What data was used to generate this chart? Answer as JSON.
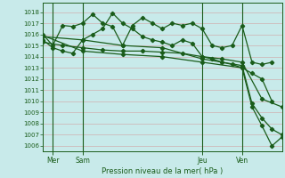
{
  "bg_color": "#c8eaea",
  "grid_color": "#d0b0b0",
  "line_color": "#1a5c1a",
  "xlabel_text": "Pression niveau de la mer( hPa )",
  "ylim": [
    1005.5,
    1018.8
  ],
  "yticks": [
    1006,
    1007,
    1008,
    1009,
    1010,
    1011,
    1012,
    1013,
    1014,
    1015,
    1016,
    1017,
    1018
  ],
  "xlim": [
    0,
    24
  ],
  "xtick_positions": [
    1,
    4,
    16,
    20
  ],
  "xtick_labels": [
    "Mer",
    "Sam",
    "Jeu",
    "Ven"
  ],
  "vlines": [
    1,
    4,
    16,
    20
  ],
  "series": [
    {
      "x": [
        0,
        1,
        2,
        3,
        4,
        5,
        6,
        7,
        8,
        9,
        10,
        11,
        12,
        13,
        14,
        15,
        16,
        17,
        18,
        19,
        20,
        21,
        22,
        23
      ],
      "y": [
        1016.0,
        1015.0,
        1016.8,
        1016.7,
        1017.0,
        1017.8,
        1017.0,
        1016.7,
        1015.0,
        1016.8,
        1017.5,
        1017.0,
        1016.5,
        1017.0,
        1016.8,
        1017.0,
        1016.5,
        1015.0,
        1014.8,
        1015.0,
        1016.8,
        1013.5,
        1013.3,
        1013.5
      ],
      "marker": "D",
      "markersize": 2.2,
      "linewidth": 0.9
    },
    {
      "x": [
        0,
        1,
        2,
        3,
        4,
        5,
        6,
        7,
        8,
        9,
        10,
        11,
        12,
        13,
        14,
        15,
        16,
        17,
        18,
        19,
        20,
        21,
        22,
        23
      ],
      "y": [
        1015.5,
        1014.8,
        1014.5,
        1014.3,
        1015.5,
        1016.0,
        1016.5,
        1017.9,
        1017.0,
        1016.5,
        1015.8,
        1015.5,
        1015.3,
        1015.0,
        1015.5,
        1015.2,
        1014.0,
        1013.8,
        1013.5,
        1013.3,
        1013.0,
        1012.5,
        1012.0,
        1010.0
      ],
      "marker": "D",
      "markersize": 2.2,
      "linewidth": 0.9
    },
    {
      "x": [
        0,
        2,
        4,
        6,
        8,
        10,
        12,
        14,
        16,
        18,
        20,
        22,
        24
      ],
      "y": [
        1015.3,
        1015.0,
        1014.8,
        1014.6,
        1014.5,
        1014.5,
        1014.4,
        1014.3,
        1014.0,
        1013.8,
        1013.5,
        1010.2,
        1009.5
      ],
      "marker": "D",
      "markersize": 2.2,
      "linewidth": 0.9
    },
    {
      "x": [
        0,
        4,
        8,
        12,
        16,
        20,
        21,
        22,
        23,
        24
      ],
      "y": [
        1015.8,
        1015.5,
        1015.0,
        1014.8,
        1013.8,
        1013.2,
        1009.8,
        1008.5,
        1007.5,
        1007.0
      ],
      "marker": "D",
      "markersize": 2.2,
      "linewidth": 0.9
    },
    {
      "x": [
        0,
        4,
        8,
        12,
        16,
        20,
        21,
        22,
        23,
        24
      ],
      "y": [
        1015.9,
        1014.5,
        1014.2,
        1014.0,
        1013.5,
        1013.0,
        1009.5,
        1007.8,
        1006.0,
        1006.8
      ],
      "marker": "D",
      "markersize": 2.2,
      "linewidth": 0.9
    }
  ]
}
